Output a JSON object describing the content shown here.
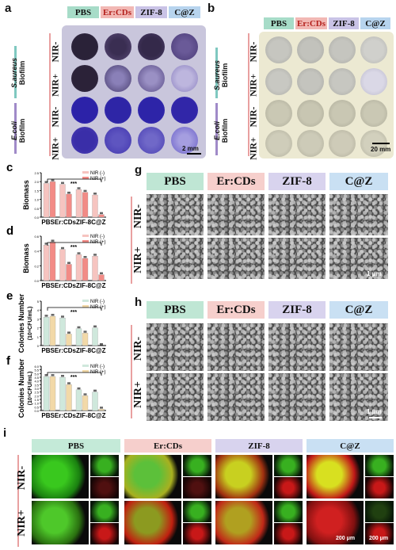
{
  "panel_labels": {
    "a": "a",
    "b": "b",
    "c": "c",
    "d": "d",
    "e": "e",
    "f": "f",
    "g": "g",
    "h": "h",
    "i": "i"
  },
  "plate_headers": [
    "PBS",
    "Er:CDs",
    "ZIF-8",
    "C@Z"
  ],
  "header_colors": [
    "#a7dcc8",
    "#f2b8b4",
    "#c9c3e6",
    "#b7d4ee"
  ],
  "nir_minus": "NIR-",
  "nir_plus": "NIR+",
  "sa_biofilm": {
    "species": "S.aureus",
    "word": "Biofilm"
  },
  "ec_biofilm": {
    "species": "E.coli",
    "word": "Biofilm"
  },
  "scale_a": "2 mm",
  "scale_b": "20 mm",
  "scale_sem": "1 μm",
  "scale_i1": "200 μm",
  "scale_i2": "200 μm",
  "chart_data": [
    {
      "panel": "c",
      "type": "bar",
      "ylabel": "Biomass",
      "ylim": [
        0,
        2.5
      ],
      "yticks": [
        "0.0",
        "0.5",
        "1.0",
        "1.5",
        "2.0",
        "2.5"
      ],
      "categories": [
        "PBS",
        "Er:CDs",
        "ZIF-8",
        "C@Z"
      ],
      "category_axis_text": "PBSEr:CDsZIF-8C@Z",
      "series": [
        {
          "name": "NIR (-)",
          "values": [
            1.9,
            1.85,
            1.55,
            1.25
          ]
        },
        {
          "name": "NIR (+)",
          "values": [
            2.0,
            1.3,
            1.4,
            0.15
          ]
        }
      ],
      "significance": "***"
    },
    {
      "panel": "d",
      "type": "bar",
      "ylabel": "Biomass",
      "ylim": [
        0,
        0.6
      ],
      "yticks": [
        "0.0",
        "0.2",
        "0.4",
        "0.6"
      ],
      "categories": [
        "PBS",
        "Er:CDs",
        "ZIF-8",
        "C@Z"
      ],
      "category_axis_text": "PBSEr:CDsZIF-8C@Z",
      "series": [
        {
          "name": "NIR (-)",
          "values": [
            0.48,
            0.42,
            0.35,
            0.33
          ]
        },
        {
          "name": "NIR (+)",
          "values": [
            0.52,
            0.22,
            0.3,
            0.08
          ]
        }
      ],
      "significance": "***"
    },
    {
      "panel": "e",
      "type": "bar",
      "ylabel": "Colonies Number",
      "ylabel2": "(10⁸CFU/mL)",
      "ylim": [
        0,
        5
      ],
      "yticks": [
        "0",
        "1",
        "2",
        "3",
        "4",
        "5"
      ],
      "categories": [
        "PBS",
        "Er:CDs",
        "ZIF-8",
        "C@Z"
      ],
      "category_axis_text": "PBSEr:CDsZIF-8C@Z",
      "series": [
        {
          "name": "NIR (-)",
          "values": [
            3.2,
            3.1,
            1.9,
            2.0
          ]
        },
        {
          "name": "NIR (+)",
          "values": [
            3.3,
            1.3,
            1.4,
            0.0
          ]
        }
      ],
      "significance": "***"
    },
    {
      "panel": "f",
      "type": "bar",
      "ylabel": "Colonies Number",
      "ylabel2": "(10⁹CFU/mL)",
      "ylim": [
        0,
        6
      ],
      "yticks": [
        "0.0",
        "0.5",
        "1.0",
        "1.5",
        "2.0",
        "2.5",
        "3.0",
        "3.5",
        "4.0",
        "4.5",
        "5.0",
        "5.5",
        "6.0"
      ],
      "categories": [
        "PBS",
        "Er:CDs",
        "ZIF-8",
        "C@Z"
      ],
      "category_axis_text": "PBSEr:CDsZIF-8C@Z",
      "series": [
        {
          "name": "NIR (-)",
          "values": [
            4.6,
            4.5,
            2.8,
            2.5
          ]
        },
        {
          "name": "NIR (+)",
          "values": [
            4.6,
            3.5,
            2.0,
            0.2
          ]
        }
      ],
      "significance": "***"
    }
  ],
  "bar_colors": {
    "neg_c": "#f6c4c0",
    "pos_c": "#f28b86",
    "neg_e": "#cfe8dc",
    "pos_e": "#f2d9a8"
  }
}
